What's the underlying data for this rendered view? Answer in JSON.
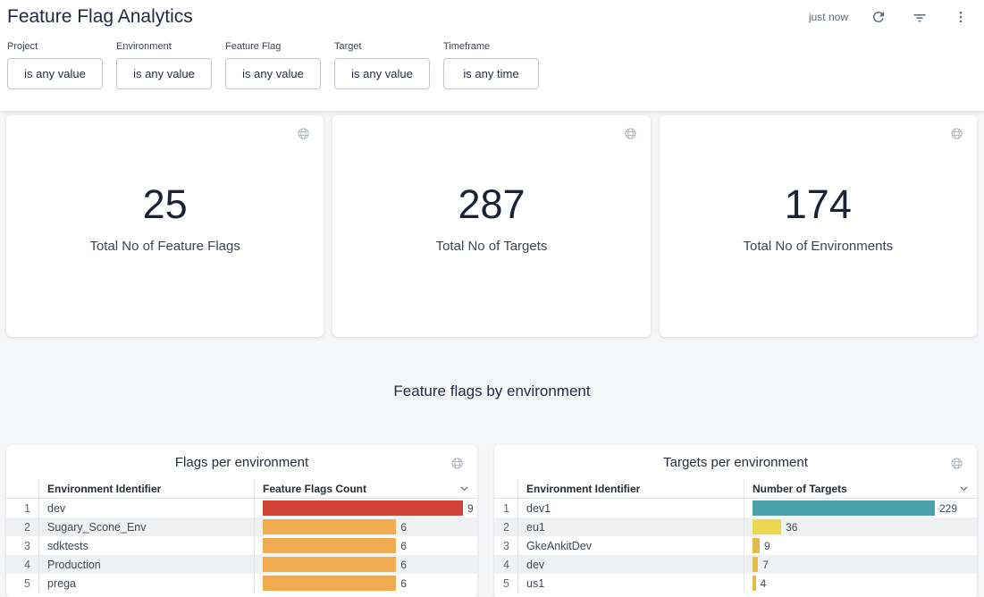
{
  "header": {
    "title": "Feature Flag Analytics",
    "last_updated": "just now",
    "icons": {
      "refresh": "refresh-icon",
      "filter": "filter-icon",
      "menu": "kebab-menu-icon"
    }
  },
  "filters": [
    {
      "label": "Project",
      "value": "is any value"
    },
    {
      "label": "Environment",
      "value": "is any value"
    },
    {
      "label": "Feature Flag",
      "value": "is any value"
    },
    {
      "label": "Target",
      "value": "is any value"
    },
    {
      "label": "Timeframe",
      "value": "is any time"
    }
  ],
  "kpis": [
    {
      "value": "25",
      "label": "Total No of Feature Flags"
    },
    {
      "value": "287",
      "label": "Total No of Targets"
    },
    {
      "value": "174",
      "label": "Total No of Environments"
    }
  ],
  "section_heading": "Feature flags by environment",
  "colors": {
    "red": "#cf4437",
    "orange": "#f1ab50",
    "teal": "#49a0a8",
    "yellow": "#ecd84e",
    "gold": "#e4bb49",
    "title_navy": "#1f2940",
    "page_bg": "#f5f6f7"
  },
  "chart_data": [
    {
      "type": "bar",
      "title": "Flags per environment",
      "columns": [
        "Environment Identifier",
        "Feature Flags Count"
      ],
      "categories": [
        "dev",
        "Sugary_Scone_Env",
        "sdktests",
        "Production",
        "prega"
      ],
      "values": [
        9,
        6,
        6,
        6,
        6
      ],
      "bar_colors": [
        "#cf4437",
        "#f1ab50",
        "#f1ab50",
        "#f1ab50",
        "#f1ab50"
      ],
      "rows": [
        {
          "rank": "1",
          "env": "dev",
          "value": 9,
          "color": "#cf4437"
        },
        {
          "rank": "2",
          "env": "Sugary_Scone_Env",
          "value": 6,
          "color": "#f1ab50"
        },
        {
          "rank": "3",
          "env": "sdktests",
          "value": 6,
          "color": "#f1ab50"
        },
        {
          "rank": "4",
          "env": "Production",
          "value": 6,
          "color": "#f1ab50"
        },
        {
          "rank": "5",
          "env": "prega",
          "value": 6,
          "color": "#f1ab50"
        }
      ]
    },
    {
      "type": "bar",
      "title": "Targets per environment",
      "columns": [
        "Environment Identifier",
        "Number of Targets"
      ],
      "categories": [
        "dev1",
        "eu1",
        "GkeAnkitDev",
        "dev",
        "us1"
      ],
      "values": [
        229,
        36,
        9,
        7,
        4
      ],
      "bar_colors": [
        "#49a0a8",
        "#ecd84e",
        "#e4bb49",
        "#e4bb49",
        "#e4bb49"
      ],
      "rows": [
        {
          "rank": "1",
          "env": "dev1",
          "value": 229,
          "color": "#49a0a8"
        },
        {
          "rank": "2",
          "env": "eu1",
          "value": 36,
          "color": "#ecd84e"
        },
        {
          "rank": "3",
          "env": "GkeAnkitDev",
          "value": 9,
          "color": "#e4bb49"
        },
        {
          "rank": "4",
          "env": "dev",
          "value": 7,
          "color": "#e4bb49"
        },
        {
          "rank": "5",
          "env": "us1",
          "value": 4,
          "color": "#e4bb49"
        }
      ]
    }
  ]
}
